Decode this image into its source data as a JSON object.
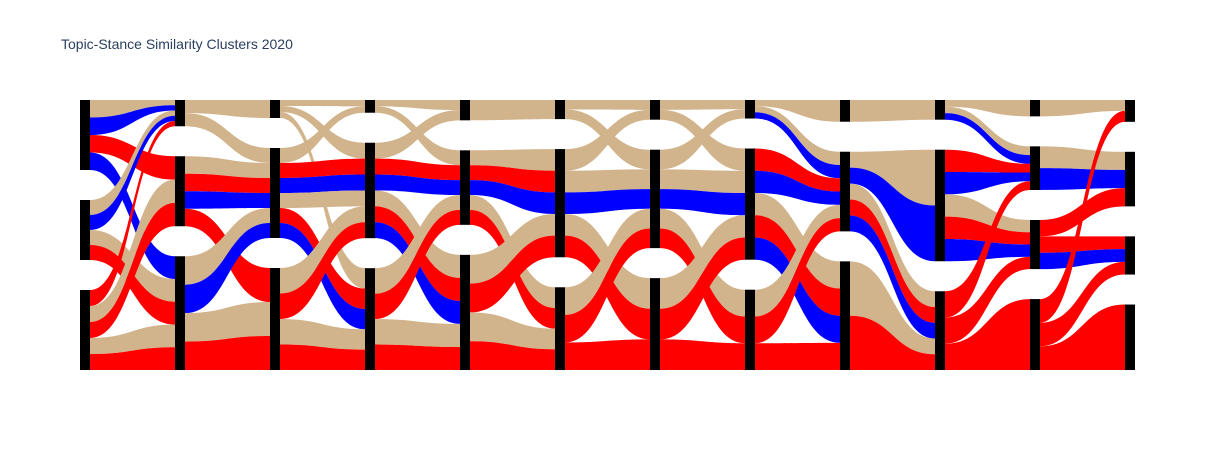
{
  "chart_data": {
    "type": "sankey",
    "title": "Topic-Stance Similarity Clusters 2020",
    "node_color": "#000000",
    "colors": {
      "neutral": "#d2b48c",
      "blue": "#0000ff",
      "red": "#ff0000"
    },
    "columns": [
      [
        7,
        6,
        8
      ],
      [
        3,
        8,
        13
      ],
      [
        3,
        15,
        17
      ],
      [
        2,
        15,
        16
      ],
      [
        3,
        11,
        17
      ],
      [
        3,
        17,
        13
      ],
      [
        3,
        15,
        14
      ],
      [
        3,
        18,
        13
      ],
      [
        3,
        11,
        15
      ],
      [
        3,
        17,
        12
      ],
      [
        3,
        8,
        9,
        13
      ],
      [
        4,
        10,
        7,
        12
      ]
    ],
    "links": [
      [
        0,
        0,
        0,
        0,
        "neutral"
      ],
      [
        0,
        0,
        0,
        1,
        "blue"
      ],
      [
        0,
        0,
        1,
        1,
        "red"
      ],
      [
        0,
        0,
        2,
        1,
        "blue"
      ],
      [
        0,
        1,
        0,
        0,
        "neutral"
      ],
      [
        0,
        1,
        0,
        1,
        "blue"
      ],
      [
        0,
        1,
        2,
        0,
        "neutral"
      ],
      [
        0,
        1,
        2,
        1,
        "red"
      ],
      [
        0,
        2,
        0,
        1,
        "red"
      ],
      [
        0,
        2,
        1,
        0,
        "neutral"
      ],
      [
        0,
        2,
        1,
        1,
        "red"
      ],
      [
        0,
        2,
        2,
        0,
        "neutral"
      ],
      [
        0,
        2,
        2,
        1,
        "red"
      ],
      [
        1,
        0,
        0,
        0,
        "neutral"
      ],
      [
        1,
        0,
        1,
        0,
        "neutral"
      ],
      [
        1,
        1,
        1,
        0,
        "neutral"
      ],
      [
        1,
        1,
        1,
        1,
        "red"
      ],
      [
        1,
        1,
        1,
        1,
        "blue"
      ],
      [
        1,
        1,
        2,
        1,
        "red"
      ],
      [
        1,
        2,
        1,
        0,
        "neutral"
      ],
      [
        1,
        2,
        1,
        1,
        "blue"
      ],
      [
        1,
        2,
        2,
        0,
        "neutral"
      ],
      [
        1,
        2,
        2,
        1,
        "red"
      ],
      [
        2,
        0,
        0,
        0,
        "neutral"
      ],
      [
        2,
        0,
        1,
        0,
        "neutral"
      ],
      [
        2,
        0,
        2,
        0,
        "neutral"
      ],
      [
        2,
        1,
        0,
        0,
        "neutral"
      ],
      [
        2,
        1,
        1,
        1,
        "red"
      ],
      [
        2,
        1,
        1,
        1,
        "blue"
      ],
      [
        2,
        1,
        1,
        0,
        "neutral"
      ],
      [
        2,
        1,
        2,
        1,
        "red"
      ],
      [
        2,
        1,
        2,
        1,
        "blue"
      ],
      [
        2,
        2,
        1,
        0,
        "neutral"
      ],
      [
        2,
        2,
        1,
        1,
        "red"
      ],
      [
        2,
        2,
        2,
        0,
        "neutral"
      ],
      [
        2,
        2,
        2,
        1,
        "red"
      ],
      [
        3,
        0,
        0,
        0,
        "neutral"
      ],
      [
        3,
        0,
        1,
        0,
        "neutral"
      ],
      [
        3,
        1,
        0,
        0,
        "neutral"
      ],
      [
        3,
        1,
        1,
        1,
        "red"
      ],
      [
        3,
        1,
        1,
        1,
        "blue"
      ],
      [
        3,
        1,
        2,
        0,
        "neutral"
      ],
      [
        3,
        1,
        2,
        1,
        "red"
      ],
      [
        3,
        1,
        2,
        1,
        "blue"
      ],
      [
        3,
        2,
        1,
        0,
        "neutral"
      ],
      [
        3,
        2,
        1,
        1,
        "red"
      ],
      [
        3,
        2,
        2,
        0,
        "neutral"
      ],
      [
        3,
        2,
        2,
        1,
        "red"
      ],
      [
        4,
        0,
        0,
        0,
        "neutral"
      ],
      [
        4,
        1,
        1,
        0,
        "neutral"
      ],
      [
        4,
        1,
        1,
        1,
        "red"
      ],
      [
        4,
        1,
        1,
        1,
        "blue"
      ],
      [
        4,
        1,
        2,
        0,
        "neutral"
      ],
      [
        4,
        1,
        2,
        1,
        "red"
      ],
      [
        4,
        2,
        1,
        0,
        "neutral"
      ],
      [
        4,
        2,
        1,
        1,
        "red"
      ],
      [
        4,
        2,
        2,
        0,
        "neutral"
      ],
      [
        4,
        2,
        2,
        1,
        "red"
      ],
      [
        5,
        0,
        0,
        0,
        "neutral"
      ],
      [
        5,
        0,
        1,
        0,
        "neutral"
      ],
      [
        5,
        1,
        0,
        0,
        "neutral"
      ],
      [
        5,
        1,
        1,
        0,
        "neutral"
      ],
      [
        5,
        1,
        1,
        1,
        "blue"
      ],
      [
        5,
        1,
        2,
        0,
        "neutral"
      ],
      [
        5,
        1,
        2,
        1,
        "red"
      ],
      [
        5,
        2,
        1,
        0,
        "neutral"
      ],
      [
        5,
        2,
        1,
        1,
        "red"
      ],
      [
        5,
        2,
        2,
        1,
        "red"
      ],
      [
        6,
        0,
        0,
        0,
        "neutral"
      ],
      [
        6,
        0,
        1,
        0,
        "neutral"
      ],
      [
        6,
        1,
        0,
        0,
        "neutral"
      ],
      [
        6,
        1,
        1,
        0,
        "neutral"
      ],
      [
        6,
        1,
        1,
        1,
        "blue"
      ],
      [
        6,
        1,
        2,
        0,
        "neutral"
      ],
      [
        6,
        1,
        2,
        1,
        "red"
      ],
      [
        6,
        2,
        1,
        0,
        "neutral"
      ],
      [
        6,
        2,
        1,
        1,
        "red"
      ],
      [
        6,
        2,
        2,
        1,
        "red"
      ],
      [
        7,
        0,
        0,
        0,
        "neutral"
      ],
      [
        7,
        0,
        1,
        0,
        "neutral"
      ],
      [
        7,
        0,
        1,
        1,
        "blue"
      ],
      [
        7,
        1,
        1,
        1,
        "red"
      ],
      [
        7,
        1,
        1,
        1,
        "blue"
      ],
      [
        7,
        1,
        2,
        0,
        "neutral"
      ],
      [
        7,
        1,
        2,
        1,
        "red"
      ],
      [
        7,
        1,
        2,
        1,
        "blue"
      ],
      [
        7,
        2,
        1,
        0,
        "neutral"
      ],
      [
        7,
        2,
        1,
        1,
        "red"
      ],
      [
        7,
        2,
        2,
        1,
        "red"
      ],
      [
        8,
        0,
        0,
        0,
        "neutral"
      ],
      [
        8,
        1,
        1,
        0,
        "neutral"
      ],
      [
        8,
        1,
        1,
        1,
        "blue"
      ],
      [
        8,
        1,
        2,
        0,
        "neutral"
      ],
      [
        8,
        1,
        2,
        1,
        "red"
      ],
      [
        8,
        1,
        2,
        1,
        "blue"
      ],
      [
        8,
        2,
        2,
        0,
        "neutral"
      ],
      [
        8,
        2,
        2,
        1,
        "red"
      ],
      [
        9,
        0,
        0,
        0,
        "neutral"
      ],
      [
        9,
        0,
        1,
        0,
        "neutral"
      ],
      [
        9,
        0,
        1,
        1,
        "blue"
      ],
      [
        9,
        1,
        1,
        1,
        "red"
      ],
      [
        9,
        1,
        1,
        1,
        "blue"
      ],
      [
        9,
        1,
        2,
        0,
        "neutral"
      ],
      [
        9,
        1,
        2,
        1,
        "red"
      ],
      [
        9,
        1,
        2,
        1,
        "blue"
      ],
      [
        9,
        2,
        1,
        1,
        "red"
      ],
      [
        9,
        2,
        2,
        1,
        "red"
      ],
      [
        9,
        2,
        3,
        1,
        "red"
      ],
      [
        10,
        0,
        0,
        0,
        "neutral"
      ],
      [
        10,
        1,
        1,
        0,
        "neutral"
      ],
      [
        10,
        1,
        1,
        1,
        "blue"
      ],
      [
        10,
        2,
        1,
        1,
        "red"
      ],
      [
        10,
        2,
        2,
        1,
        "red"
      ],
      [
        10,
        2,
        2,
        1,
        "blue"
      ],
      [
        10,
        3,
        0,
        1,
        "red"
      ],
      [
        10,
        3,
        2,
        1,
        "red"
      ],
      [
        10,
        3,
        3,
        1,
        "red"
      ]
    ]
  }
}
